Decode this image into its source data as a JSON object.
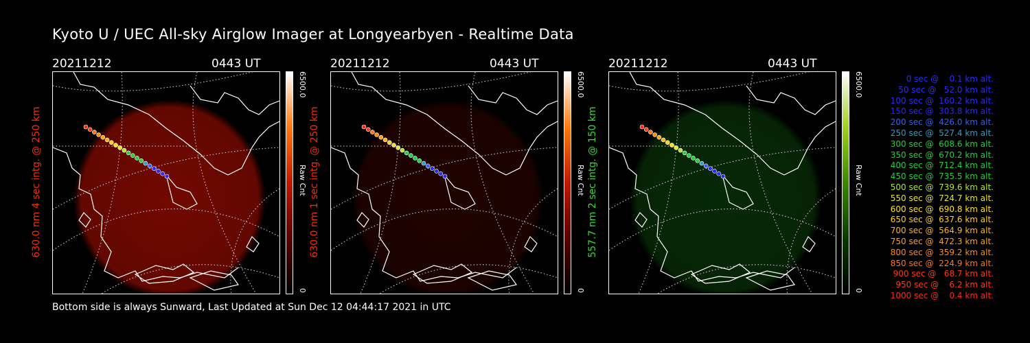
{
  "header": {
    "title": "Kyoto U / UEC All-sky Airglow Imager at Longyearbyen - Realtime Data"
  },
  "panels": [
    {
      "date": "20211212",
      "time": "0443 UT",
      "label": "630.0 nm 4 sec intg. @ 250 km",
      "label_color": "#ff2a00",
      "cbar_max": "6500.0",
      "cbar_min": "0",
      "cbar_unit": "Raw Cnt",
      "glow_color": "#d01000",
      "glow_opacity": 0.55,
      "cbar_gradient": [
        "#000000",
        "#5a0000",
        "#c01800",
        "#ff7a10",
        "#ffffff"
      ]
    },
    {
      "date": "20211212",
      "time": "0443 UT",
      "label": "630.0 nm 1 sec intg. @ 250 km",
      "label_color": "#ff2a00",
      "cbar_max": "6500.0",
      "cbar_min": "0",
      "cbar_unit": "Raw Cnt",
      "glow_color": "#5a0800",
      "glow_opacity": 0.35,
      "cbar_gradient": [
        "#000000",
        "#5a0000",
        "#c01800",
        "#ff7a10",
        "#ffffff"
      ]
    },
    {
      "date": "20211212",
      "time": "0443 UT",
      "label": "557.7 nm 2 sec intg. @ 150 km",
      "label_color": "#33dd33",
      "cbar_max": "6500.0",
      "cbar_min": "0",
      "cbar_unit": "Raw Cnt",
      "glow_color": "#0f5a10",
      "glow_opacity": 0.45,
      "cbar_gradient": [
        "#000000",
        "#0a3a00",
        "#3a8a00",
        "#a0d020",
        "#ffffff"
      ]
    }
  ],
  "legend": [
    {
      "text": "0 sec @    0.1 km alt.",
      "color": "#2a2aff"
    },
    {
      "text": "50 sec @   52.0 km alt.",
      "color": "#2a2aff"
    },
    {
      "text": "100 sec @  160.2 km alt.",
      "color": "#2a2aff"
    },
    {
      "text": "150 sec @  303.8 km alt.",
      "color": "#2a2aff"
    },
    {
      "text": "200 sec @  426.0 km alt.",
      "color": "#2f60ff"
    },
    {
      "text": "250 sec @  527.4 km alt.",
      "color": "#2aa0c8"
    },
    {
      "text": "300 sec @  608.6 km alt.",
      "color": "#22d23c"
    },
    {
      "text": "350 sec @  670.2 km alt.",
      "color": "#22d23c"
    },
    {
      "text": "400 sec @  712.4 km alt.",
      "color": "#22d23c"
    },
    {
      "text": "450 sec @  735.5 km alt.",
      "color": "#22d23c"
    },
    {
      "text": "500 sec @  739.6 km alt.",
      "color": "#b4e628"
    },
    {
      "text": "550 sec @  724.7 km alt.",
      "color": "#e6e628"
    },
    {
      "text": "600 sec @  690.8 km alt.",
      "color": "#ffe014"
    },
    {
      "text": "650 sec @  637.6 km alt.",
      "color": "#ffd014"
    },
    {
      "text": "700 sec @  564.9 km alt.",
      "color": "#ffb414"
    },
    {
      "text": "750 sec @  472.3 km alt.",
      "color": "#ffa014"
    },
    {
      "text": "800 sec @  359.2 km alt.",
      "color": "#ff8c14"
    },
    {
      "text": "850 sec @  224.9 km alt.",
      "color": "#ff7814"
    },
    {
      "text": "900 sec @   68.7 km alt.",
      "color": "#ff3a14"
    },
    {
      "text": "950 sec @    6.2 km alt.",
      "color": "#ff3a14"
    },
    {
      "text": "1000 sec @    0.4 km alt.",
      "color": "#ff2a14"
    }
  ],
  "footer": {
    "text": "Bottom side is always Sunward, Last Updated at Sun Dec 12 04:44:17 2021 in UTC"
  }
}
